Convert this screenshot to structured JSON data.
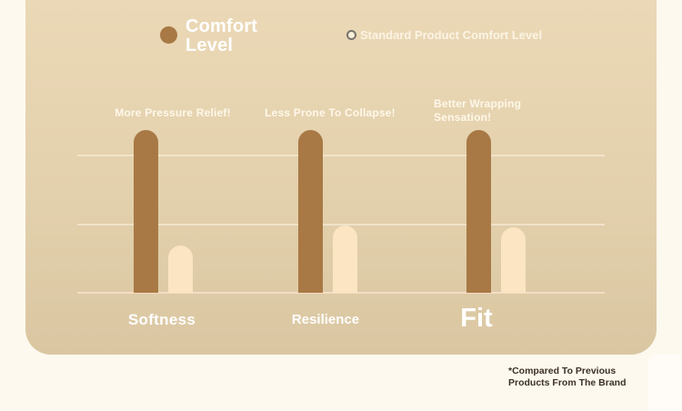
{
  "chart_data": {
    "type": "bar",
    "title": "Comfort Level",
    "categories": [
      "Softness",
      "Resilience",
      "Fit"
    ],
    "series": [
      {
        "name": "Comfort Level",
        "color": "#A87945",
        "values": [
          2.35,
          2.35,
          2.35
        ]
      },
      {
        "name": "Standard Product Comfort Level",
        "color": "#FBE5C2",
        "values": [
          0.68,
          0.97,
          0.95
        ]
      }
    ],
    "annotations": [
      "More Pressure Relief!",
      "Less Prone To Collapse!",
      "Better Wrapping Sensation!"
    ],
    "ylim": [
      0,
      3
    ],
    "gridlines": [
      1,
      2
    ],
    "grid": true,
    "legend_position": "top",
    "footnote": "*Compared To Previous Products From The Brand"
  },
  "colors": {
    "page_background": "#FEF9EF",
    "card_gradient_top": "#EBD8B6",
    "card_gradient_bottom": "#DAC7A2",
    "primary_bar": "#A87945",
    "secondary_bar": "#FBE5C2",
    "text_light": "#FFFFFF",
    "footnote_text": "#3B3126"
  }
}
